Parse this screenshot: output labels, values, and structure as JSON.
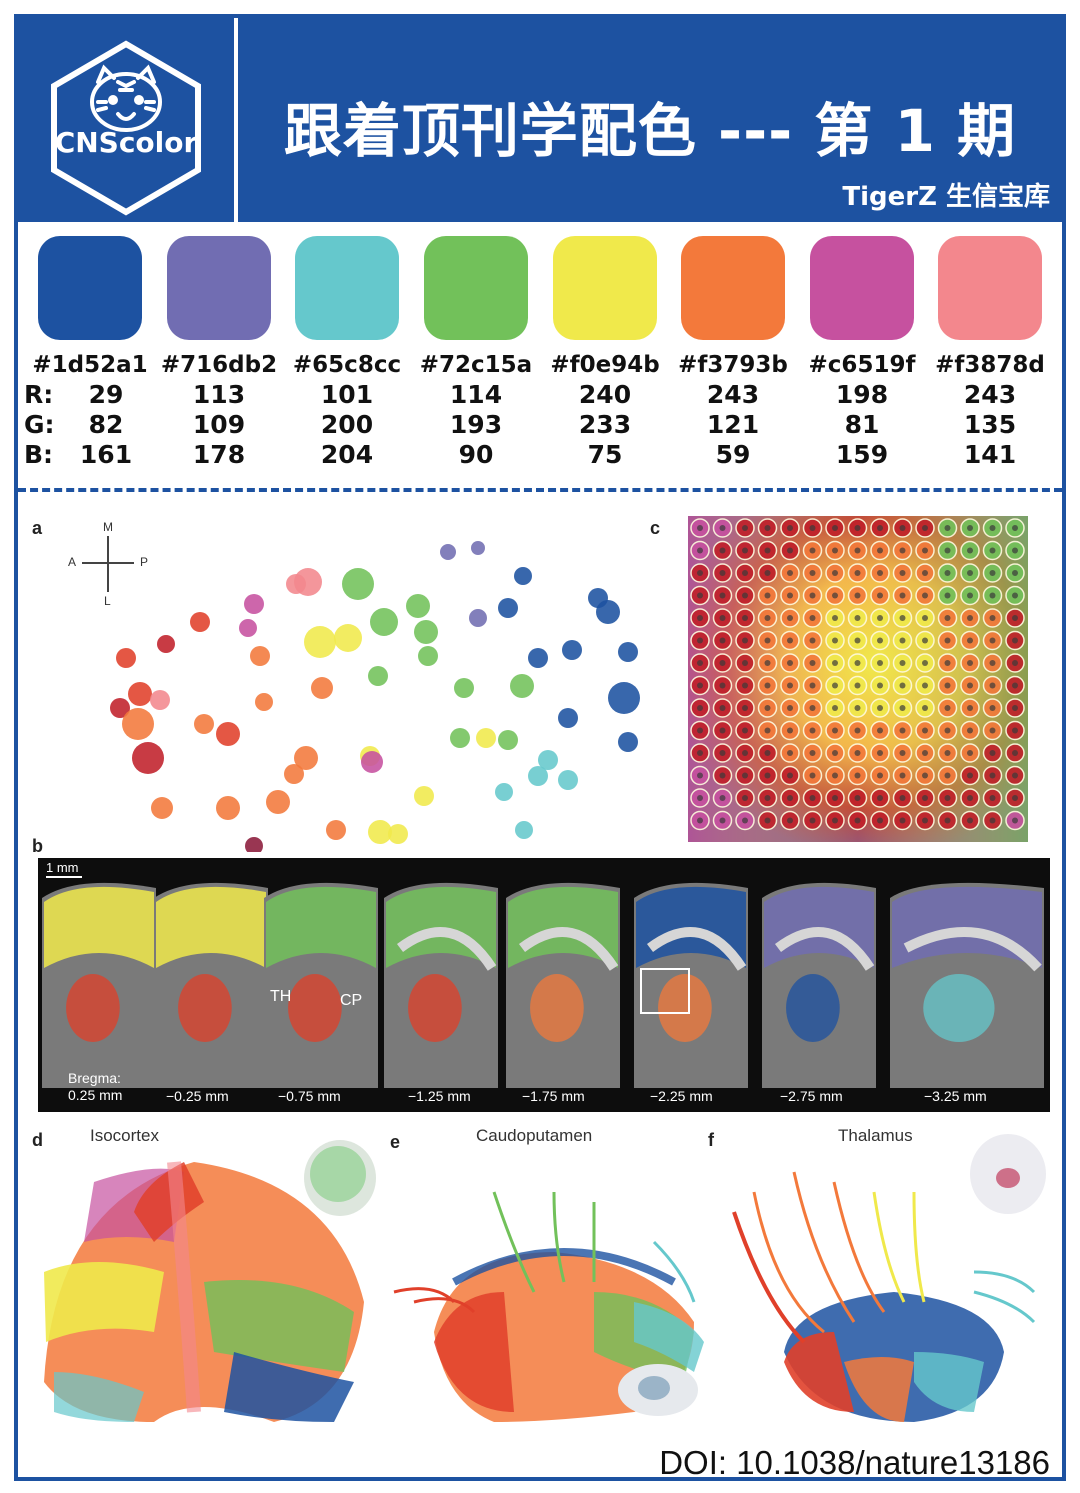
{
  "brand": {
    "logo_text": "CNScolor"
  },
  "header": {
    "title": "跟着顶刊学配色 --- 第 1 期",
    "subtitle": "TigerZ 生信宝库"
  },
  "palette": {
    "row_labels": [
      "R:",
      "G:",
      "B:"
    ],
    "colors": [
      {
        "hex": "#1d52a1",
        "r": "29",
        "g": "82",
        "b": "161"
      },
      {
        "hex": "#716db2",
        "r": "113",
        "g": "109",
        "b": "178"
      },
      {
        "hex": "#65c8cc",
        "r": "101",
        "g": "200",
        "b": "204"
      },
      {
        "hex": "#72c15a",
        "r": "114",
        "g": "193",
        "b": "90"
      },
      {
        "hex": "#f0e94b",
        "r": "240",
        "g": "233",
        "b": "75"
      },
      {
        "hex": "#f3793b",
        "r": "243",
        "g": "121",
        "b": "59"
      },
      {
        "hex": "#c6519f",
        "r": "198",
        "g": "81",
        "b": "159"
      },
      {
        "hex": "#f3878d",
        "r": "243",
        "g": "135",
        "b": "141"
      }
    ]
  },
  "figure": {
    "panel_labels": {
      "a": "a",
      "b": "b",
      "c": "c",
      "d": "d",
      "e": "e",
      "f": "f"
    },
    "compass": {
      "m": "M",
      "a": "A",
      "p": "P",
      "l": "L"
    },
    "scale_bar": "1 mm",
    "section_labels": [
      "Bregma:\n0.25 mm",
      "−0.25 mm",
      "−0.75 mm",
      "−1.25 mm",
      "−1.75 mm",
      "−2.25 mm",
      "−2.75 mm",
      "−3.25 mm"
    ],
    "region_labels": {
      "th": "TH",
      "cp": "CP"
    },
    "panel_titles": {
      "d": "Isocortex",
      "e": "Caudoputamen",
      "f": "Thalamus"
    }
  },
  "doi": "DOI: 10.1038/nature13186"
}
